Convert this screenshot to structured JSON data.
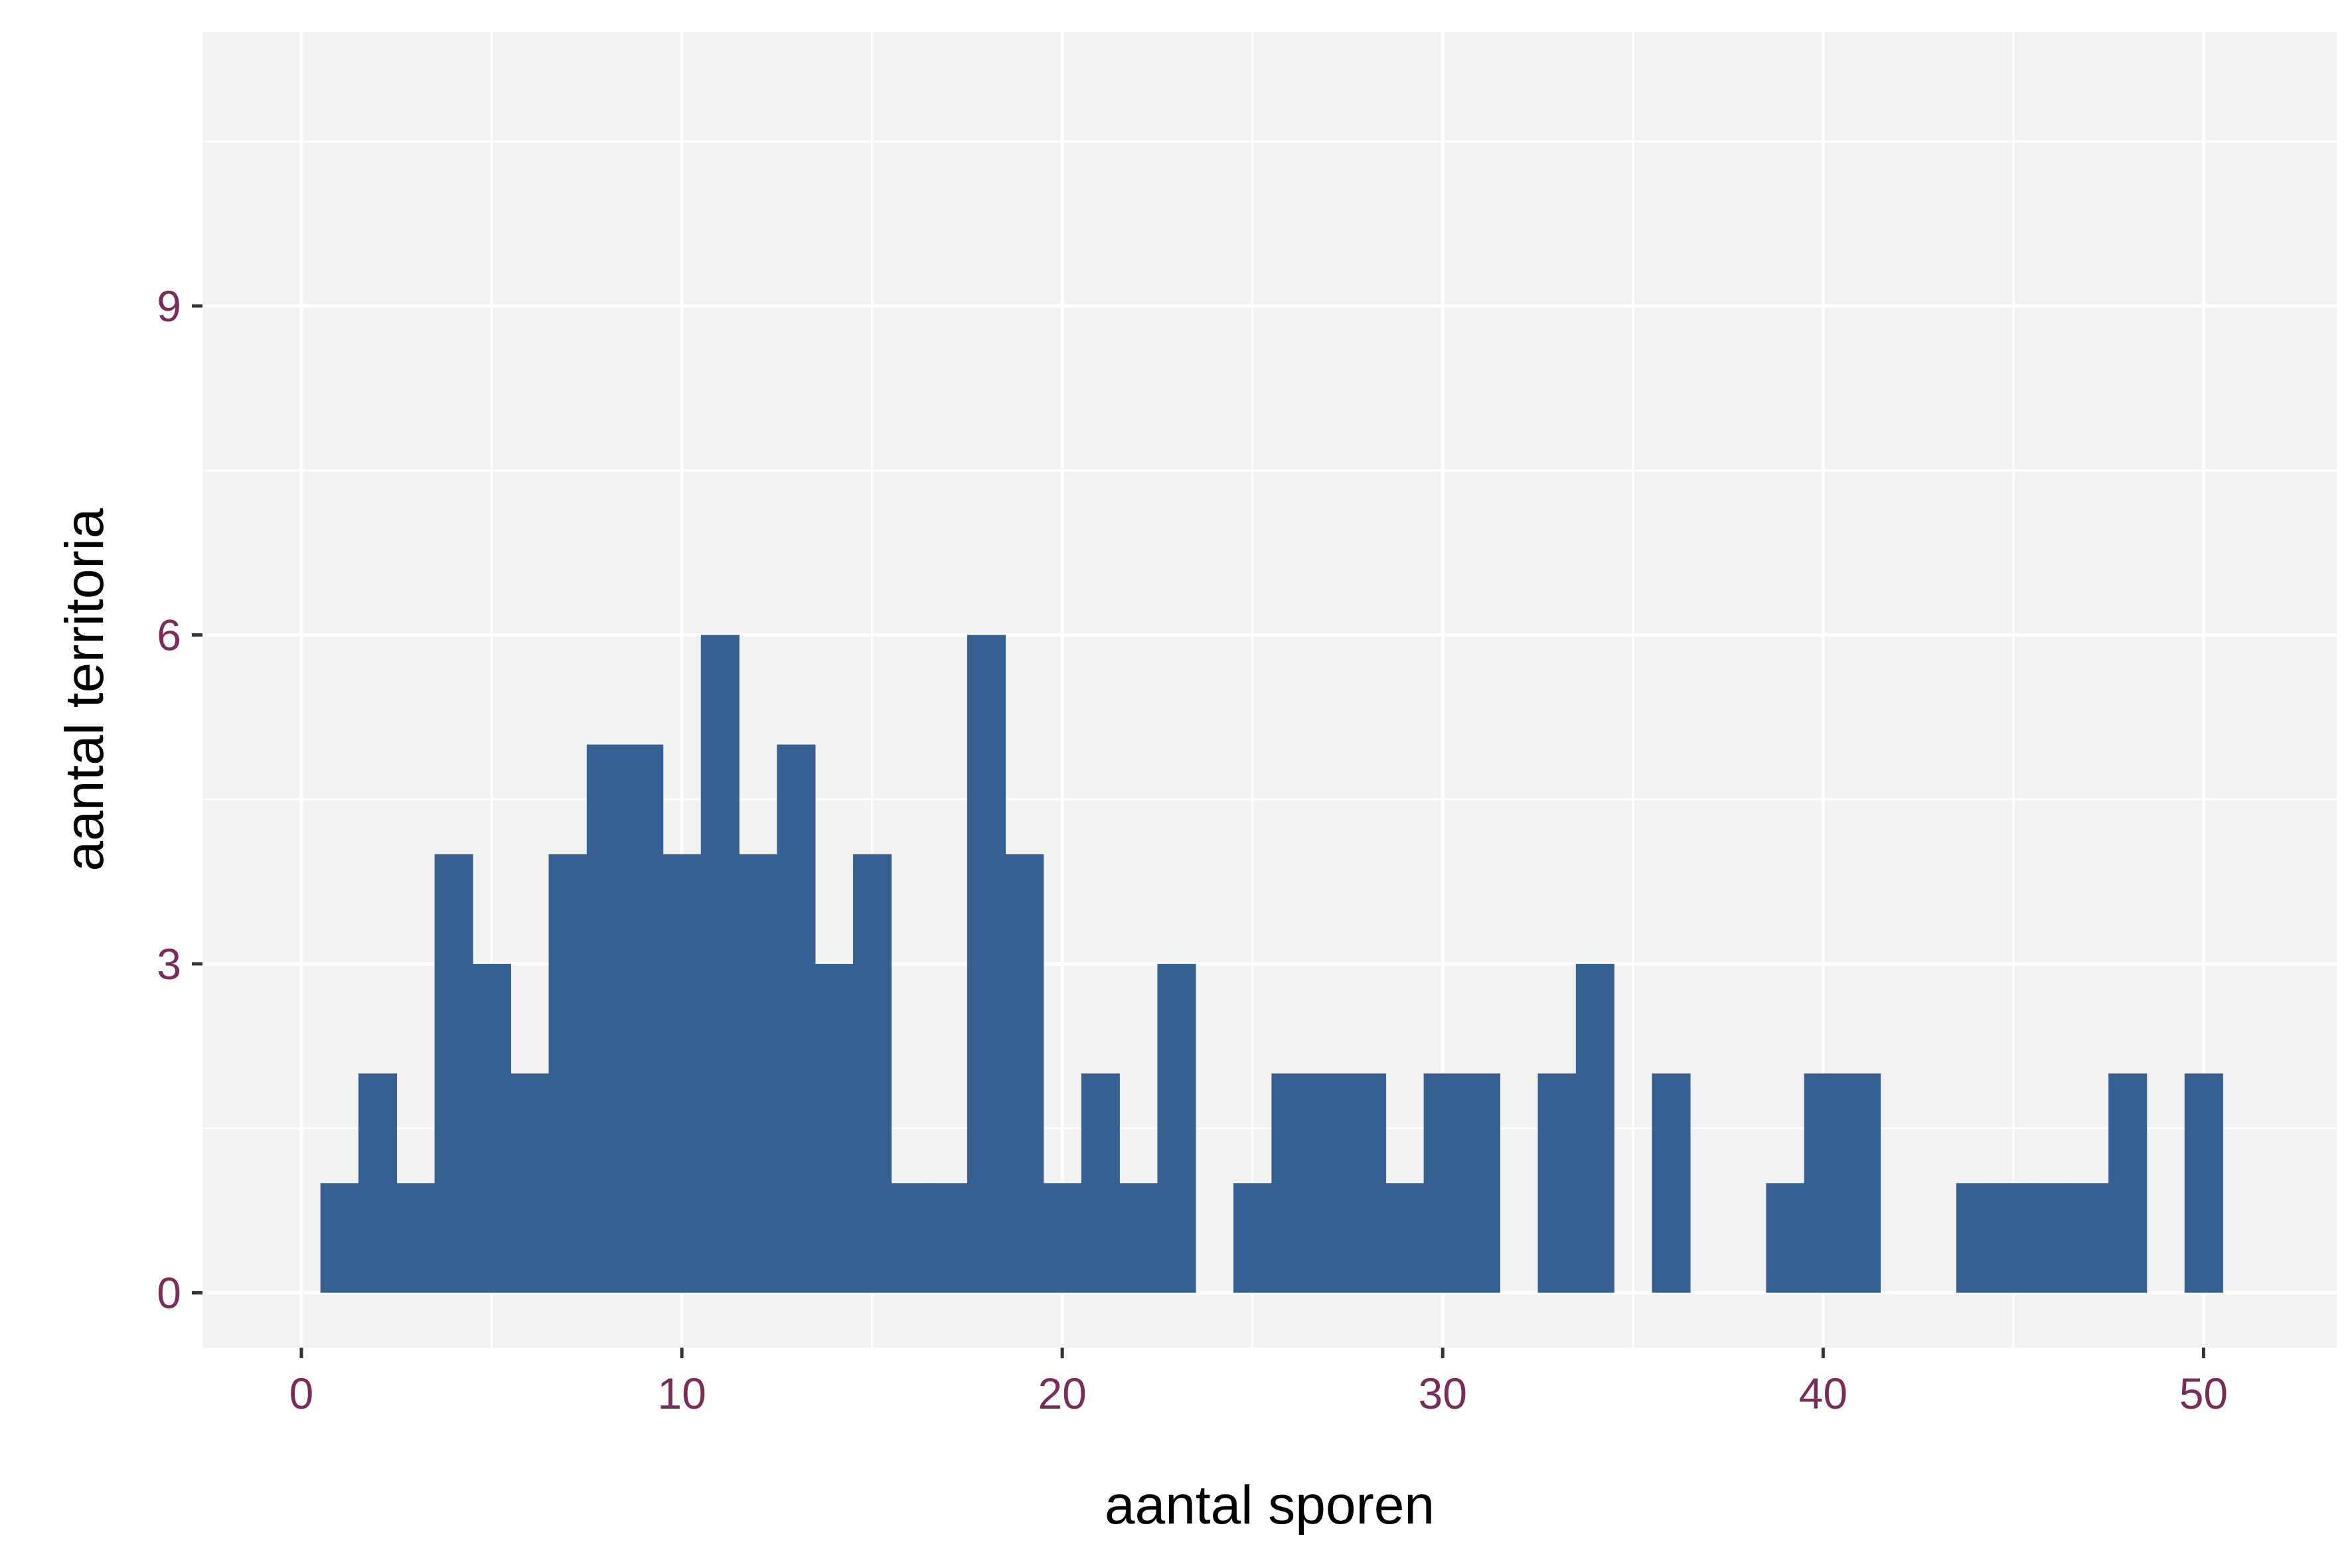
{
  "chart_data": {
    "type": "bar",
    "title": "",
    "xlabel": "aantal sporen",
    "ylabel": "aantal territoria",
    "xlim": [
      -2.6,
      53.5
    ],
    "ylim": [
      -0.5,
      11.5
    ],
    "x_ticks": [
      0,
      10,
      20,
      30,
      40,
      50
    ],
    "x_tick_labels": [
      "0",
      "10",
      "20",
      "30",
      "40",
      "50"
    ],
    "y_ticks": [
      0,
      3,
      6,
      9
    ],
    "y_tick_labels": [
      "0",
      "3",
      "6",
      "9"
    ],
    "bin_width": 1,
    "x": [
      1,
      2,
      3,
      4,
      5,
      6,
      7,
      8,
      9,
      10,
      11,
      12,
      13,
      14,
      15,
      16,
      17,
      18,
      19,
      20,
      21,
      22,
      23,
      24,
      25,
      26,
      27,
      28,
      29,
      30,
      31,
      32,
      33,
      34,
      35,
      36,
      37,
      38,
      39,
      40,
      41,
      42,
      43,
      44,
      45,
      46,
      47,
      48,
      49,
      50
    ],
    "values": [
      1,
      2,
      1,
      4,
      3,
      2,
      4,
      5,
      5,
      4,
      6,
      4,
      5,
      3,
      4,
      1,
      1,
      6,
      4,
      1,
      2,
      1,
      3,
      0,
      1,
      2,
      2,
      2,
      1,
      2,
      2,
      0,
      2,
      3,
      0,
      2,
      0,
      0,
      1,
      2,
      2,
      0,
      0,
      1,
      1,
      1,
      1,
      2,
      0,
      2
    ],
    "grid": true,
    "legend": "none",
    "colors": {
      "bar": "#376092",
      "panel": "#f2f2f2",
      "grid": "#ffffff",
      "tick_label": "#7b2d5a",
      "axis_title": "#000000",
      "tick_mark": "#333333"
    }
  }
}
